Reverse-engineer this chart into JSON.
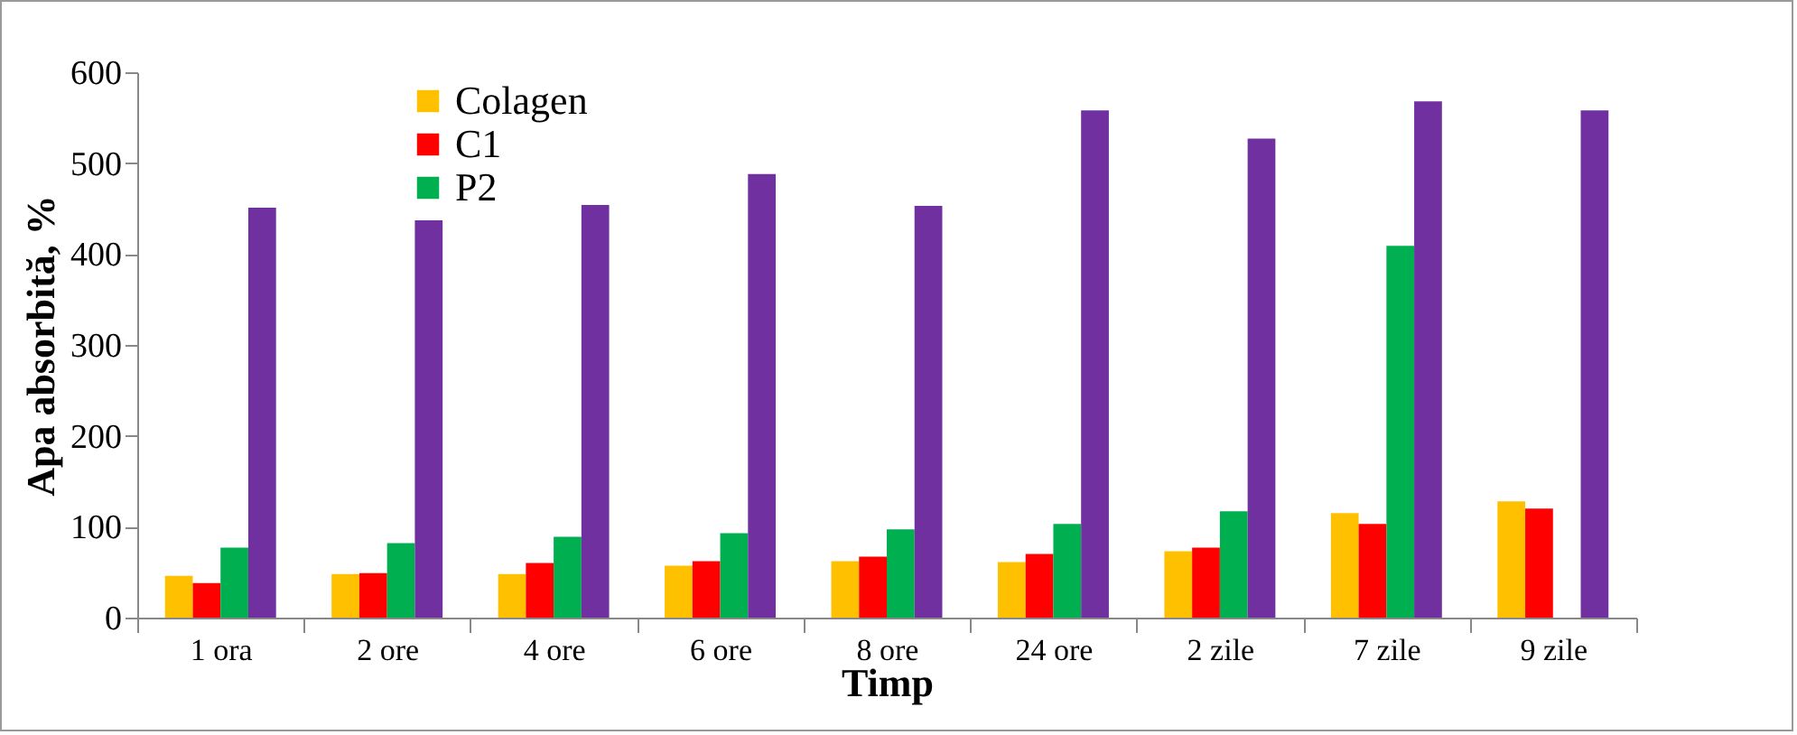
{
  "chart_data": {
    "type": "bar",
    "xlabel": "Timp",
    "ylabel": "Apa absorbită, %",
    "categories": [
      "1 ora",
      "2 ore",
      "4 ore",
      "6 ore",
      "8 ore",
      "24 ore",
      "2 zile",
      "7 zile",
      "9 zile"
    ],
    "series": [
      {
        "name": "Colagen",
        "color": "#ffc000",
        "values": [
          46,
          48,
          48,
          57,
          62,
          61,
          73,
          115,
          128
        ]
      },
      {
        "name": "C1",
        "color": "#ff0000",
        "values": [
          38,
          49,
          60,
          62,
          67,
          70,
          77,
          103,
          120
        ]
      },
      {
        "name": "P2",
        "color": "#00b050",
        "values": [
          77,
          82,
          89,
          93,
          97,
          103,
          117,
          409,
          null
        ]
      },
      {
        "color": "#7030a0",
        "values": [
          451,
          437,
          454,
          488,
          453,
          558,
          527,
          568,
          558
        ]
      }
    ],
    "ylim": [
      0,
      600
    ],
    "yticks": [
      0,
      100,
      200,
      300,
      400,
      500,
      600
    ],
    "grid": false,
    "legend": "top left"
  }
}
